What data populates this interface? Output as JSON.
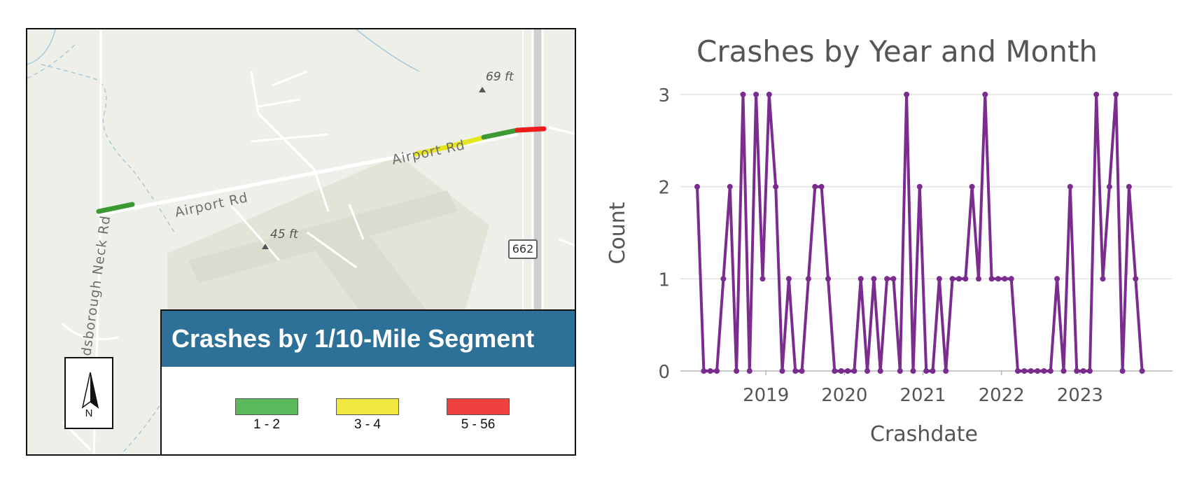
{
  "map": {
    "road_labels": [
      "Airport Rd",
      "Airport Rd",
      "dsborough Neck Rd"
    ],
    "elevations": [
      "69 ft",
      "45 ft"
    ],
    "route_shield": "662",
    "north_label": "N",
    "legend": {
      "title": "Crashes by 1/10-Mile Segment",
      "items": [
        {
          "label": "1 - 2",
          "color": "#5cb85c"
        },
        {
          "label": "3 - 4",
          "color": "#f0e840"
        },
        {
          "label": "5 - 56",
          "color": "#f04040"
        }
      ]
    },
    "colors": {
      "low": "#3d9a32",
      "mid": "#e6e620",
      "high": "#ee1c1c"
    }
  },
  "chart_data": {
    "type": "line",
    "title": "Crashes by Year and Month",
    "xlabel": "Crashdate",
    "ylabel": "Count",
    "ylim": [
      0,
      3
    ],
    "yticks": [
      0,
      1,
      2,
      3
    ],
    "xlim": [
      2018.0,
      2024.0
    ],
    "xticks": [
      {
        "value": 2019,
        "label": "2019"
      },
      {
        "value": 2020,
        "label": "2020"
      },
      {
        "value": 2021,
        "label": "2021"
      },
      {
        "value": 2022,
        "label": "2022"
      },
      {
        "value": 2023,
        "label": "2023"
      }
    ],
    "line_color": "#7b2c8f",
    "start": {
      "year": 2018,
      "month": 2
    },
    "values": [
      2,
      0,
      0,
      0,
      1,
      2,
      0,
      3,
      0,
      3,
      1,
      3,
      2,
      0,
      1,
      0,
      0,
      1,
      2,
      2,
      1,
      0,
      0,
      0,
      0,
      1,
      0,
      1,
      0,
      1,
      1,
      0,
      3,
      0,
      2,
      0,
      0,
      1,
      0,
      1,
      1,
      1,
      2,
      1,
      3,
      1,
      1,
      1,
      1,
      0,
      0,
      0,
      0,
      0,
      0,
      1,
      0,
      2,
      0,
      0,
      0,
      3,
      1,
      2,
      3,
      0,
      2,
      1,
      0
    ]
  }
}
